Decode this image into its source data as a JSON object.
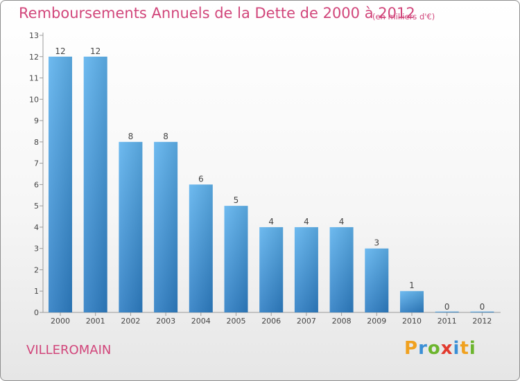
{
  "title": "Remboursements Annuels de la Dette de 2000 à 2012",
  "unit_note": "(en milliers d'€)",
  "commune": "VILLEROMAIN",
  "logo": {
    "letters": [
      "P",
      "r",
      "o",
      "x",
      "i",
      "t",
      "i"
    ],
    "colors": [
      "#f0a11f",
      "#3a8fd6",
      "#6cb52d",
      "#e23a2e",
      "#3a8fd6",
      "#f0a11f",
      "#6cb52d"
    ]
  },
  "colors": {
    "text": "#d1457a",
    "bar_light": "#5fb3ee",
    "bar_dark": "#2e7ec4"
  },
  "chart_data": {
    "type": "bar",
    "categories": [
      "2000",
      "2001",
      "2002",
      "2003",
      "2004",
      "2005",
      "2006",
      "2007",
      "2008",
      "2009",
      "2010",
      "2011",
      "2012"
    ],
    "values": [
      12,
      12,
      8,
      8,
      6,
      5,
      4,
      4,
      4,
      3,
      1,
      0,
      0
    ],
    "ylim": [
      0,
      13
    ],
    "yticks": [
      0,
      1,
      2,
      3,
      4,
      5,
      6,
      7,
      8,
      9,
      10,
      11,
      12,
      13
    ],
    "grid": false
  }
}
